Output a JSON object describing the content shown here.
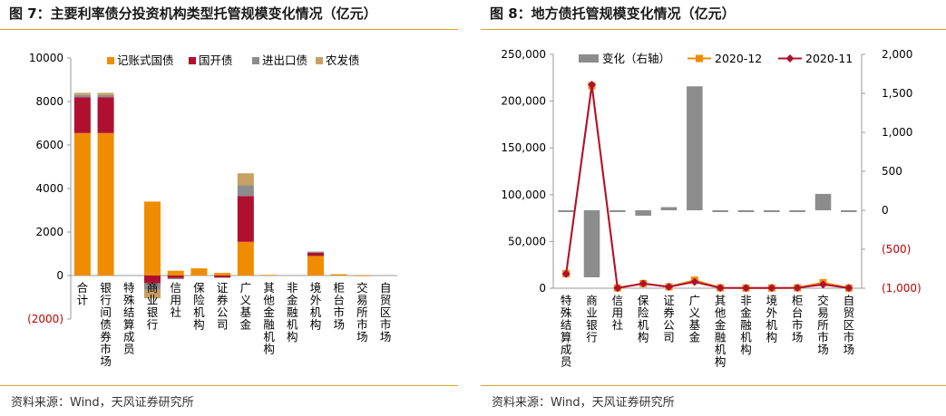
{
  "charts": [
    {
      "title": "图 7：主要利率债分投资机构类型托管规模变化情况（亿元）",
      "source": "资料来源：Wind，天风证券研究所"
    },
    {
      "title": "图 8：地方债托管规模变化情况（亿元）",
      "source": "资料来源：Wind，天风证券研究所"
    }
  ],
  "chart_data": [
    {
      "type": "bar",
      "stacked": true,
      "title": "图 7：主要利率债分投资机构类型托管规模变化情况（亿元）",
      "categories": [
        "合计",
        "银行间债券市场",
        "特殊结算成员",
        "商业银行",
        "信用社",
        "保险机构",
        "证券公司",
        "广义基金",
        "其他金融机构",
        "非金融机构",
        "境外机构",
        "柜台市场",
        "交易所市场",
        "自贸区市场"
      ],
      "series": [
        {
          "name": "记账式国债",
          "color": "#f08c00",
          "values": [
            6550,
            6550,
            0,
            3400,
            220,
            330,
            120,
            1550,
            30,
            0,
            900,
            60,
            -30,
            0
          ]
        },
        {
          "name": "国开债",
          "color": "#b01030",
          "values": [
            1650,
            1650,
            0,
            -350,
            -120,
            0,
            -90,
            2100,
            0,
            0,
            150,
            0,
            0,
            0
          ]
        },
        {
          "name": "进出口债",
          "color": "#8c8c8c",
          "values": [
            100,
            100,
            0,
            -300,
            -50,
            0,
            -20,
            500,
            0,
            0,
            50,
            0,
            0,
            0
          ]
        },
        {
          "name": "农发债",
          "color": "#c8a064",
          "values": [
            100,
            100,
            0,
            -400,
            0,
            0,
            0,
            550,
            0,
            0,
            0,
            0,
            0,
            0
          ]
        }
      ],
      "yticks": [
        "10000",
        "8000",
        "6000",
        "4000",
        "2000",
        "0",
        "(2000)"
      ],
      "ylim": [
        -2000,
        10000
      ],
      "legend": "top",
      "grid": false
    },
    {
      "type": "bar+line",
      "title": "图 8：地方债托管规模变化情况（亿元）",
      "categories": [
        "特殊结算成员",
        "商业银行",
        "信用社",
        "保险机构",
        "证券公司",
        "广义基金",
        "其他金融机构",
        "非金融机构",
        "境外机构",
        "柜台市场",
        "交易所市场",
        "自贸区市场"
      ],
      "bar_series": {
        "name": "变化（右轴）",
        "color": "#8c8c8c",
        "axis": "right",
        "values": [
          -10,
          -860,
          -10,
          -70,
          40,
          1590,
          -5,
          -5,
          -5,
          -5,
          210,
          -5
        ]
      },
      "line_series": [
        {
          "name": "2020-12",
          "color": "#f08c00",
          "axis": "left",
          "values": [
            15500,
            216500,
            300,
            5000,
            1500,
            8600,
            400,
            200,
            300,
            400,
            6000,
            200
          ]
        },
        {
          "name": "2020-11",
          "color": "#b01030",
          "axis": "left",
          "values": [
            15400,
            217500,
            300,
            5000,
            1500,
            6800,
            400,
            200,
            300,
            400,
            4000,
            200
          ]
        }
      ],
      "yticks_left": [
        "250,000",
        "200,000",
        "150,000",
        "100,000",
        "50,000",
        "0"
      ],
      "yticks_right": [
        "2,000",
        "1,500",
        "1,000",
        "500",
        "0",
        "(500)",
        "(1,000)"
      ],
      "ylim_left": [
        0,
        250000
      ],
      "ylim_right": [
        -1000,
        2000
      ],
      "legend": "top",
      "grid": false
    }
  ]
}
